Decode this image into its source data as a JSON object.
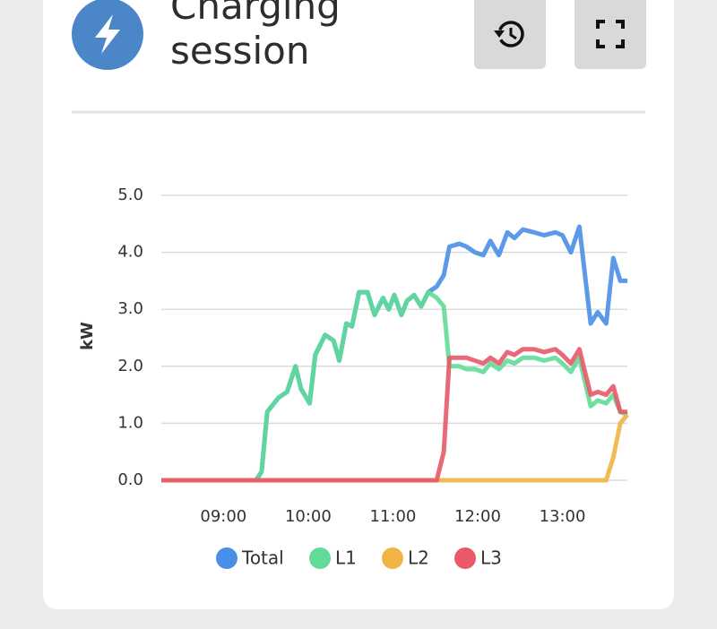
{
  "header": {
    "title": "Charging session"
  },
  "chart_data": {
    "type": "line",
    "y_label": "kW",
    "x": [
      496,
      563,
      567,
      571,
      579,
      585,
      591,
      595,
      601,
      605,
      612,
      618,
      622,
      627,
      631,
      636,
      642,
      647,
      653,
      657,
      661,
      666,
      670,
      675,
      680,
      685,
      691,
      696,
      700,
      707,
      712,
      718,
      724,
      729,
      735,
      741,
      746,
      752,
      760,
      767,
      775,
      780,
      786,
      792,
      800,
      805,
      811,
      816,
      821,
      826
    ],
    "xlim": [
      496,
      826
    ],
    "xticks": [
      {
        "value": 540,
        "label": "09:00"
      },
      {
        "value": 600,
        "label": "10:00"
      },
      {
        "value": 660,
        "label": "11:00"
      },
      {
        "value": 720,
        "label": "12:00"
      },
      {
        "value": 780,
        "label": "13:00"
      }
    ],
    "ylim": [
      0,
      5
    ],
    "yticks": [
      {
        "value": 0,
        "label": "0.0"
      },
      {
        "value": 1,
        "label": "1.0"
      },
      {
        "value": 2,
        "label": "2.0"
      },
      {
        "value": 3,
        "label": "3.0"
      },
      {
        "value": 4,
        "label": "4.0"
      },
      {
        "value": 5,
        "label": "5.0"
      }
    ],
    "grid": true,
    "series": [
      {
        "name": "Total",
        "color": "#4a8fe7",
        "values": [
          0,
          0,
          0.15,
          1.2,
          1.45,
          1.55,
          2.0,
          1.6,
          1.35,
          2.2,
          2.55,
          2.45,
          2.1,
          2.75,
          2.7,
          3.3,
          3.3,
          2.9,
          3.2,
          3.0,
          3.25,
          2.9,
          3.15,
          3.25,
          3.05,
          3.3,
          3.4,
          3.6,
          4.1,
          4.15,
          4.1,
          4.0,
          3.95,
          4.2,
          3.95,
          4.35,
          4.25,
          4.4,
          4.35,
          4.3,
          4.35,
          4.3,
          4.0,
          4.45,
          2.75,
          2.95,
          2.75,
          3.9,
          3.5,
          3.5
        ]
      },
      {
        "name": "L1",
        "color": "#62db98",
        "values": [
          0,
          0,
          0.15,
          1.2,
          1.45,
          1.55,
          2.0,
          1.6,
          1.35,
          2.2,
          2.55,
          2.45,
          2.1,
          2.75,
          2.7,
          3.3,
          3.3,
          2.9,
          3.2,
          3.0,
          3.25,
          2.9,
          3.15,
          3.25,
          3.05,
          3.3,
          3.2,
          3.05,
          2.0,
          2.0,
          1.95,
          1.95,
          1.9,
          2.05,
          1.95,
          2.1,
          2.05,
          2.15,
          2.15,
          2.1,
          2.15,
          2.05,
          1.9,
          2.15,
          1.3,
          1.4,
          1.35,
          1.5,
          1.2,
          1.15
        ]
      },
      {
        "name": "L2",
        "color": "#f0b443",
        "values": [
          0,
          0,
          0,
          0,
          0,
          0,
          0,
          0,
          0,
          0,
          0,
          0,
          0,
          0,
          0,
          0,
          0,
          0,
          0,
          0,
          0,
          0,
          0,
          0,
          0,
          0,
          0,
          0,
          0,
          0,
          0,
          0,
          0,
          0,
          0,
          0,
          0,
          0,
          0,
          0,
          0,
          0,
          0,
          0,
          0,
          0,
          0,
          0.4,
          1.0,
          1.15
        ]
      },
      {
        "name": "L3",
        "color": "#e8596a",
        "values": [
          0,
          0,
          0,
          0,
          0,
          0,
          0,
          0,
          0,
          0,
          0,
          0,
          0,
          0,
          0,
          0,
          0,
          0,
          0,
          0,
          0,
          0,
          0,
          0,
          0,
          0,
          0,
          0.5,
          2.15,
          2.15,
          2.15,
          2.1,
          2.05,
          2.15,
          2.05,
          2.25,
          2.2,
          2.3,
          2.3,
          2.25,
          2.3,
          2.2,
          2.05,
          2.3,
          1.5,
          1.55,
          1.5,
          1.65,
          1.2,
          1.2
        ]
      }
    ]
  }
}
